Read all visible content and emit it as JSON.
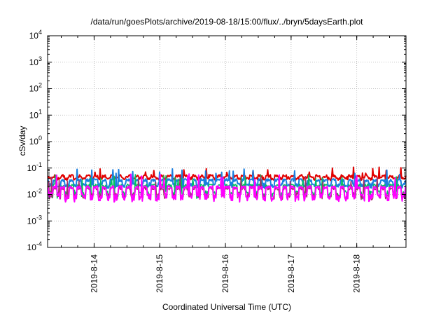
{
  "chart_data": {
    "type": "line",
    "title": "/data/run/goesPlots/archive/2019-08-18/15:00/flux/../bryn/5daysEarth.plot",
    "xlabel": "Coordinated Universal Time (UTC)",
    "ylabel": "cSv/day",
    "yscale": "log",
    "ylim": [
      0.0001,
      10000
    ],
    "yticks": [
      {
        "base": "10",
        "exp": "-4"
      },
      {
        "base": "10",
        "exp": "-3"
      },
      {
        "base": "10",
        "exp": "-2"
      },
      {
        "base": "10",
        "exp": "-1"
      },
      {
        "base": "10",
        "exp": "0"
      },
      {
        "base": "10",
        "exp": "1"
      },
      {
        "base": "10",
        "exp": "2"
      },
      {
        "base": "10",
        "exp": "3"
      },
      {
        "base": "10",
        "exp": "4"
      }
    ],
    "xlim": [
      "2019-08-13T07:00",
      "2019-08-18T18:00"
    ],
    "xticks": [
      {
        "label": "2019-8-14",
        "at": "2019-08-14T00:00"
      },
      {
        "label": "2019-8-15",
        "at": "2019-08-15T00:00"
      },
      {
        "label": "2019-8-16",
        "at": "2019-08-16T00:00"
      },
      {
        "label": "2019-8-17",
        "at": "2019-08-17T00:00"
      },
      {
        "label": "2019-8-18",
        "at": "2019-08-18T00:00"
      }
    ],
    "grid": true,
    "series": [
      {
        "color": "#e00000",
        "base": 0.05,
        "dip_depth": 0.25,
        "spike": 0.09,
        "width": 2.0,
        "seed": 11
      },
      {
        "color": "#1a7fe0",
        "base": 0.035,
        "dip_depth": 0.45,
        "spike": 0.08,
        "width": 2.0,
        "seed": 23
      },
      {
        "color": "#00c060",
        "base": 0.022,
        "dip_depth": 0.65,
        "spike": 0.05,
        "width": 1.5,
        "seed": 37
      },
      {
        "color": "#a0306a",
        "base": 0.017,
        "dip_depth": 0.6,
        "spike": 0.04,
        "width": 1.5,
        "seed": 41
      },
      {
        "color": "#ff00ff",
        "base": 0.019,
        "dip_depth": 0.7,
        "spike": 0.05,
        "width": 2.0,
        "seed": 53
      }
    ]
  }
}
